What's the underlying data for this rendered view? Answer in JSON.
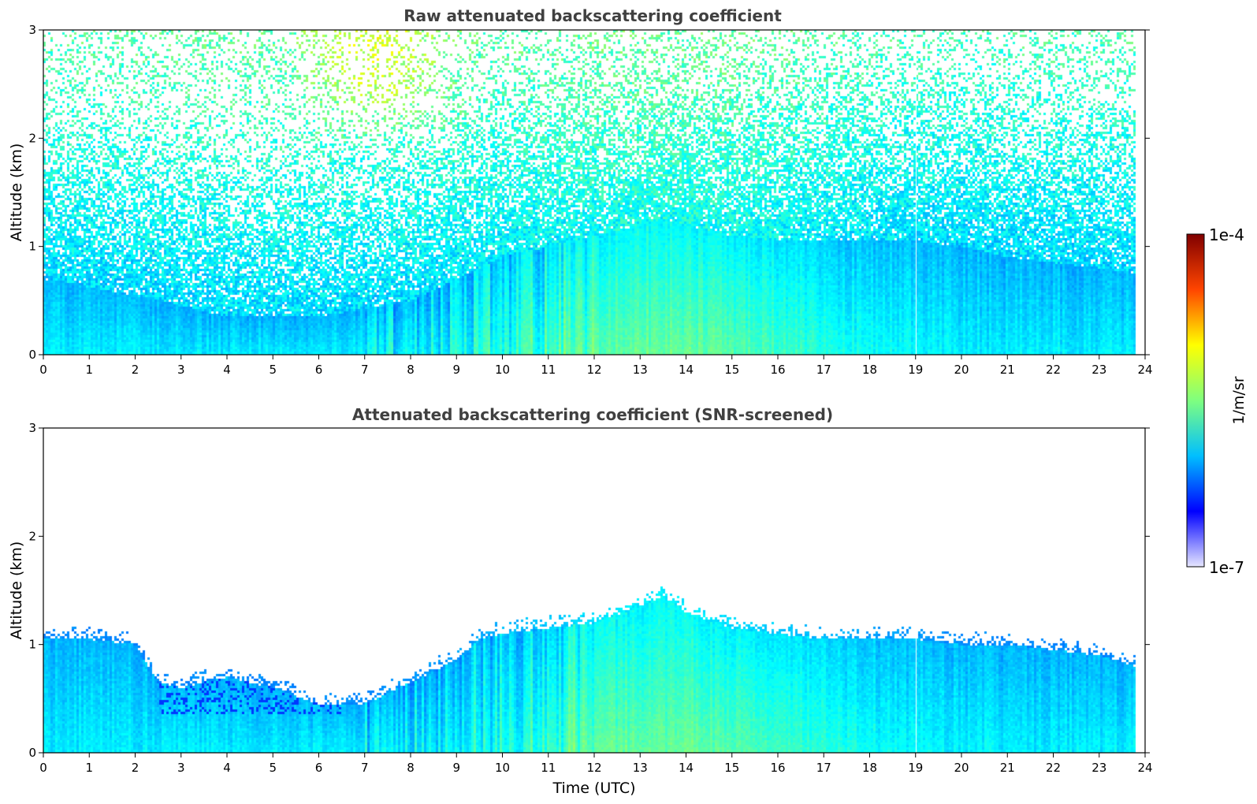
{
  "chart_data": [
    {
      "type": "heatmap",
      "title": "Raw attenuated backscattering coefficient",
      "xlabel": "",
      "ylabel": "Altitude (km)",
      "xlim": [
        0,
        24
      ],
      "ylim": [
        0,
        3
      ],
      "x_ticks": [
        "0",
        "1",
        "2",
        "3",
        "4",
        "5",
        "6",
        "7",
        "8",
        "9",
        "10",
        "11",
        "12",
        "13",
        "14",
        "15",
        "16",
        "17",
        "18",
        "19",
        "20",
        "21",
        "22",
        "23",
        "24"
      ],
      "y_ticks": [
        "0",
        "1",
        "2",
        "3"
      ],
      "data_end_time": 23.8,
      "boundary_layer_top_km": {
        "time": [
          0,
          2,
          4,
          6,
          8,
          9,
          10,
          11,
          12,
          13,
          13.5,
          14,
          15,
          16,
          17,
          18,
          19,
          20,
          21,
          22,
          23,
          23.8
        ],
        "values": [
          0.7,
          0.55,
          0.35,
          0.35,
          0.5,
          0.7,
          0.9,
          1.0,
          1.1,
          1.2,
          1.25,
          1.2,
          1.1,
          1.05,
          1.05,
          1.05,
          1.05,
          1.0,
          0.9,
          0.85,
          0.8,
          0.75
        ]
      },
      "elevated_aerosol_layer": {
        "time_range": [
          5.5,
          9.5
        ],
        "altitude_range_km": [
          2.0,
          3.0
        ]
      }
    },
    {
      "type": "heatmap",
      "title": "Attenuated backscattering coefficient (SNR-screened)",
      "xlabel": "Time (UTC)",
      "ylabel": "Altitude (km)",
      "xlim": [
        0,
        24
      ],
      "ylim": [
        0,
        3
      ],
      "x_ticks": [
        "0",
        "1",
        "2",
        "3",
        "4",
        "5",
        "6",
        "7",
        "8",
        "9",
        "10",
        "11",
        "12",
        "13",
        "14",
        "15",
        "16",
        "17",
        "18",
        "19",
        "20",
        "21",
        "22",
        "23",
        "24"
      ],
      "y_ticks": [
        "0",
        "1",
        "2",
        "3"
      ],
      "data_end_time": 23.8,
      "screened_top_km": {
        "time": [
          0,
          1,
          2,
          2.5,
          3,
          4,
          5,
          6,
          7,
          8,
          9,
          9.5,
          10,
          11,
          12,
          13,
          13.5,
          14,
          15,
          16,
          17,
          18,
          19,
          20,
          21,
          22,
          23,
          23.8
        ],
        "values": [
          1.05,
          1.05,
          1.0,
          0.65,
          0.6,
          0.7,
          0.6,
          0.45,
          0.45,
          0.65,
          0.85,
          1.05,
          1.1,
          1.15,
          1.2,
          1.35,
          1.45,
          1.3,
          1.15,
          1.1,
          1.05,
          1.05,
          1.05,
          1.0,
          1.0,
          0.95,
          0.9,
          0.8
        ]
      }
    }
  ],
  "colorbar": {
    "label": "1/m/sr",
    "max_label": "1e-4",
    "min_label": "1e-7",
    "scale": "log",
    "range": [
      1e-07,
      0.0001
    ],
    "colormap": "jet",
    "colors": [
      "#e6e6ff",
      "#0000ff",
      "#00bfff",
      "#7fff7f",
      "#ffff00",
      "#ff4500",
      "#800000"
    ]
  }
}
